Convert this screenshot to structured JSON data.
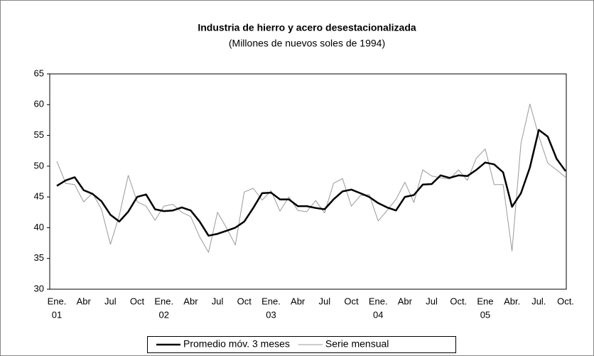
{
  "chart_data": {
    "type": "line",
    "title": "Industria de hierro y acero desestacionalizada",
    "subtitle": "(Millones de nuevos soles de 1994)",
    "categories": [
      "Ene.",
      null,
      null,
      "Abr",
      null,
      null,
      "Jul",
      null,
      null,
      "Oct",
      null,
      null,
      "Ene.",
      null,
      null,
      "Abr",
      null,
      null,
      "Jul",
      null,
      null,
      "Oct",
      null,
      null,
      "Ene.",
      null,
      null,
      "Abr",
      null,
      null,
      "Jul",
      null,
      null,
      "Oct",
      null,
      null,
      "Ene.",
      null,
      null,
      "Abr",
      null,
      null,
      "Jul",
      null,
      null,
      "Oct.",
      null,
      null,
      "Ene",
      null,
      null,
      "Abr.",
      null,
      null,
      "Jul.",
      null,
      null,
      "Oct."
    ],
    "category_years": [
      "01",
      null,
      null,
      null,
      null,
      null,
      null,
      null,
      null,
      null,
      null,
      null,
      "02",
      null,
      null,
      null,
      null,
      null,
      null,
      null,
      null,
      null,
      null,
      null,
      "03",
      null,
      null,
      null,
      null,
      null,
      null,
      null,
      null,
      null,
      null,
      null,
      "04",
      null,
      null,
      null,
      null,
      null,
      null,
      null,
      null,
      null,
      null,
      null,
      "05",
      null,
      null,
      null,
      null,
      null,
      null,
      null,
      null,
      null
    ],
    "series": [
      {
        "name": "Promedio móv. 3 meses",
        "color": "#000000",
        "width": 2.5,
        "values": [
          46.8,
          47.7,
          48.2,
          46.1,
          45.5,
          44.3,
          42.1,
          41.0,
          42.6,
          45.0,
          45.4,
          43.0,
          42.7,
          42.8,
          43.3,
          42.8,
          41.0,
          38.7,
          39.0,
          39.5,
          40.0,
          41.0,
          43.2,
          45.6,
          45.7,
          44.6,
          44.6,
          43.5,
          43.5,
          43.2,
          43.0,
          44.6,
          45.9,
          46.2,
          45.6,
          45.0,
          44.0,
          43.3,
          42.8,
          45.0,
          45.3,
          47.0,
          47.1,
          48.5,
          48.1,
          48.5,
          48.4,
          49.4,
          50.6,
          50.3,
          49.0,
          43.4,
          45.6,
          49.8,
          55.9,
          54.8,
          51.2,
          49.2
        ]
      },
      {
        "name": "Serie mensual",
        "color": "#999999",
        "width": 1,
        "values": [
          50.8,
          47.2,
          47.0,
          44.2,
          45.6,
          43.0,
          37.3,
          42.0,
          48.5,
          44.2,
          43.5,
          41.2,
          43.5,
          43.8,
          42.5,
          41.8,
          38.5,
          36.0,
          42.5,
          40.0,
          37.2,
          45.8,
          46.4,
          44.5,
          46.0,
          42.7,
          45.0,
          42.8,
          42.6,
          44.4,
          42.4,
          47.2,
          48.0,
          43.5,
          45.2,
          45.4,
          41.1,
          42.8,
          44.6,
          47.4,
          44.1,
          49.4,
          48.4,
          48.1,
          47.9,
          49.4,
          47.7,
          51.3,
          52.8,
          47.0,
          47.0,
          36.2,
          53.7,
          60.1,
          54.9,
          50.5,
          49.4,
          48.2
        ]
      }
    ],
    "ylim": [
      30,
      65
    ],
    "yticks": [
      30,
      35,
      40,
      45,
      50,
      55,
      60,
      65
    ],
    "grid": false,
    "legend": "bottom"
  }
}
